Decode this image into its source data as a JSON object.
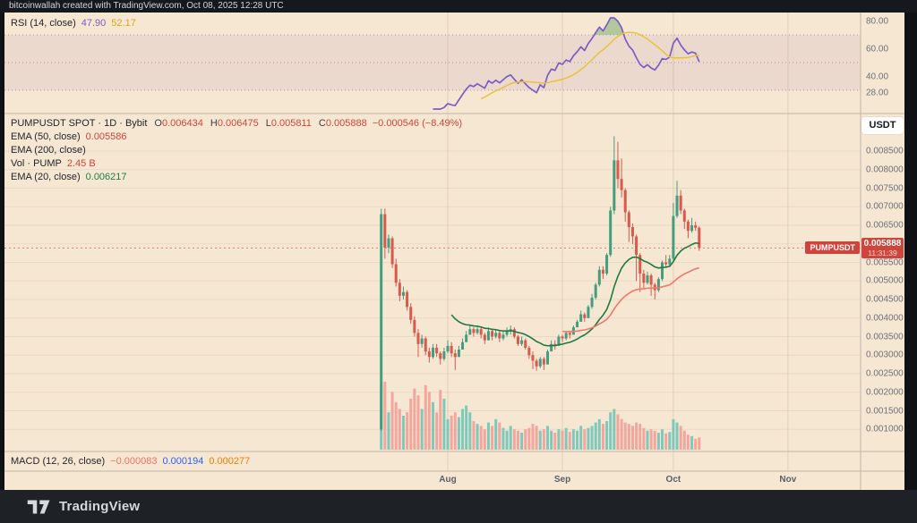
{
  "topbar": {
    "attribution": "bitcoinwallah created with TradingView.com, Oct 08, 2025 12:28 UTC"
  },
  "brand": {
    "name": "TradingView"
  },
  "rsi_pane": {
    "title": "RSI (14, close)",
    "value": "47.90",
    "ma_value": "52.17",
    "axis_labels": [
      "80.00",
      "60.00",
      "40.00",
      "28.00"
    ]
  },
  "main_pane": {
    "title": "PUMPUSDT SPOT · 1D · Bybit",
    "ohlc": {
      "o_key": "O",
      "o_val": "0.006434",
      "h_key": "H",
      "h_val": "0.006475",
      "l_key": "L",
      "l_val": "0.005811",
      "c_key": "C",
      "c_val": "0.005888"
    },
    "change": "−0.000546 (−8.49%)",
    "ema50_label": "EMA (50, close)",
    "ema50_value": "0.005586",
    "ema200_label": "EMA (200, close)",
    "vol_label": "Vol · PUMP",
    "vol_value": "2.45 B",
    "ema20_label": "EMA (20, close)",
    "ema20_value": "0.006217",
    "currency_button": "USDT",
    "symbol_label": "PUMPUSDT",
    "price_badge": {
      "price": "0.005888",
      "time": "11:31:39"
    }
  },
  "macd_pane": {
    "title": "MACD (12, 26, close)",
    "hist_value": "−0.000083",
    "macd_value": "0.000194",
    "signal_value": "0.000277"
  },
  "colors": {
    "background": "#f6e7d3",
    "frame_dark": "#16181d",
    "footer_dark": "#1e2126",
    "up": "#459c7f",
    "down": "#d9594c",
    "vol_up": "#7fc9bb",
    "vol_down": "#f4a59d",
    "ema20": "#1d7a44",
    "ema50": "#f3766f",
    "rsi_line": "#7a5cc5",
    "rsi_ma_line": "#e8c23a",
    "accent_red": "#d0453b",
    "band_fill": "rgba(123,60,145,0.08)",
    "band_line": "rgba(123,60,145,0.45)",
    "grid": "rgba(170,130,100,0.14)",
    "grid_month": "rgba(170,130,100,0.24)",
    "separator": "#c3b6a5",
    "overbought_fill": "rgba(105,170,100,0.5)"
  },
  "chart_data": {
    "type": "candlestick",
    "symbol": "PUMPUSDT",
    "interval": "1D",
    "exchange": "Bybit",
    "note": "prices stored in micro-USDT (value × 1e-6); one candle per day",
    "ylim": [
      0.001,
      0.0085
    ],
    "last_price": 0.005888,
    "last_time": "11:31:39",
    "price_axis_labels": [
      "0.008500",
      "0.008000",
      "0.007500",
      "0.007000",
      "0.006500",
      "0.006000",
      "0.005500",
      "0.005000",
      "0.004500",
      "0.004000",
      "0.003500",
      "0.003000",
      "0.002500",
      "0.002000",
      "0.001500",
      "0.001000"
    ],
    "time_axis": [
      {
        "label": "Aug",
        "index": 18
      },
      {
        "label": "Sep",
        "index": 49
      },
      {
        "label": "Oct",
        "index": 79
      },
      {
        "label": "Nov",
        "index": 110
      }
    ],
    "rsi_band": [
      30,
      70
    ],
    "indicators": {
      "ema20_last": 0.006217,
      "ema50_last": 0.005586,
      "rsi_last": 47.9,
      "rsi_ma_last": 52.17,
      "macd_hist": -8.3e-05,
      "macd": 0.000194,
      "macd_signal": 0.000277,
      "volume_last": "2.45 B"
    },
    "candles": {
      "open": [
        1000,
        6800,
        5900,
        6150,
        5450,
        4950,
        4600,
        4700,
        4300,
        3950,
        3600,
        3300,
        3450,
        3100,
        2950,
        3200,
        3050,
        2900,
        3100,
        3250,
        3050,
        2950,
        3150,
        3350,
        3550,
        3700,
        3600,
        3700,
        3550,
        3400,
        3650,
        3500,
        3600,
        3450,
        3550,
        3650,
        3700,
        3500,
        3300,
        3400,
        3200,
        3000,
        2850,
        2700,
        2900,
        2750,
        3100,
        3300,
        3250,
        3500,
        3450,
        3600,
        3550,
        3750,
        3900,
        4100,
        4000,
        4300,
        4550,
        4900,
        5300,
        5200,
        5700,
        6900,
        8250,
        7750,
        7450,
        6850,
        6450,
        6200,
        5700,
        5200,
        4950,
        5150,
        4900,
        4750,
        5050,
        5500,
        5450,
        5600,
        6750,
        7300,
        6900,
        6600,
        6350,
        6500,
        6434
      ],
      "high": [
        6950,
        6950,
        6250,
        6200,
        5600,
        5050,
        4850,
        4750,
        4400,
        4050,
        3700,
        3550,
        3500,
        3200,
        3300,
        3300,
        3100,
        3200,
        3400,
        3350,
        3150,
        3250,
        3450,
        3650,
        3800,
        3750,
        3800,
        3750,
        3600,
        3750,
        3700,
        3700,
        3650,
        3650,
        3750,
        3800,
        3750,
        3550,
        3500,
        3450,
        3250,
        3100,
        2900,
        2950,
        2950,
        3150,
        3400,
        3400,
        3550,
        3550,
        3650,
        3650,
        3800,
        3950,
        4200,
        4150,
        4350,
        4650,
        4950,
        5400,
        5400,
        5750,
        7000,
        8900,
        8750,
        8300,
        7500,
        6900,
        6550,
        6250,
        5750,
        5300,
        5250,
        5200,
        4950,
        5100,
        5550,
        5700,
        5700,
        7100,
        7700,
        7450,
        6950,
        6650,
        6700,
        6600,
        6475
      ],
      "low": [
        950,
        5600,
        5750,
        5350,
        4850,
        4450,
        4500,
        4200,
        3850,
        3500,
        2950,
        3200,
        3000,
        2800,
        2900,
        2950,
        2750,
        2850,
        3050,
        2950,
        2600,
        3000,
        3250,
        3400,
        3550,
        3500,
        3550,
        3450,
        3300,
        3400,
        3400,
        3450,
        3350,
        3400,
        3500,
        3550,
        3450,
        3250,
        3250,
        3150,
        2900,
        2620,
        2580,
        2650,
        2600,
        2750,
        3200,
        3150,
        3350,
        3350,
        3400,
        3450,
        3550,
        3750,
        3900,
        3900,
        4000,
        4250,
        4500,
        4850,
        5050,
        5150,
        5650,
        6800,
        7500,
        7250,
        6600,
        6050,
        6000,
        5000,
        4700,
        4800,
        4900,
        4600,
        4500,
        4700,
        5000,
        5350,
        5400,
        5550,
        6700,
        6800,
        6400,
        6150,
        6300,
        6350,
        5811
      ],
      "close": [
        6800,
        5900,
        6150,
        5450,
        4950,
        4600,
        4700,
        4300,
        3950,
        3600,
        3300,
        3450,
        3100,
        2950,
        3200,
        3050,
        2900,
        3100,
        3250,
        3050,
        2950,
        3150,
        3350,
        3550,
        3700,
        3600,
        3700,
        3550,
        3400,
        3650,
        3500,
        3600,
        3450,
        3550,
        3650,
        3700,
        3500,
        3300,
        3400,
        3200,
        3000,
        2850,
        2700,
        2900,
        2750,
        3100,
        3300,
        3250,
        3500,
        3450,
        3600,
        3550,
        3750,
        3900,
        4100,
        4000,
        4300,
        4550,
        4900,
        5300,
        5200,
        5700,
        6900,
        8250,
        7750,
        7450,
        6850,
        6450,
        6200,
        5700,
        5200,
        4950,
        5150,
        4900,
        4750,
        5050,
        5500,
        5450,
        5600,
        6750,
        7300,
        6900,
        6600,
        6350,
        6500,
        6434,
        5888
      ],
      "volume": [
        95,
        100,
        55,
        85,
        70,
        60,
        50,
        55,
        75,
        90,
        80,
        60,
        95,
        85,
        70,
        55,
        88,
        75,
        45,
        50,
        55,
        48,
        60,
        65,
        55,
        42,
        38,
        35,
        30,
        40,
        35,
        45,
        40,
        32,
        28,
        35,
        30,
        28,
        25,
        30,
        32,
        38,
        35,
        28,
        30,
        35,
        28,
        25,
        30,
        28,
        32,
        26,
        30,
        28,
        35,
        30,
        32,
        35,
        40,
        45,
        38,
        42,
        55,
        60,
        52,
        45,
        40,
        38,
        35,
        40,
        38,
        32,
        28,
        30,
        28,
        25,
        30,
        24,
        26,
        45,
        40,
        35,
        28,
        22,
        20,
        16,
        18
      ]
    }
  }
}
